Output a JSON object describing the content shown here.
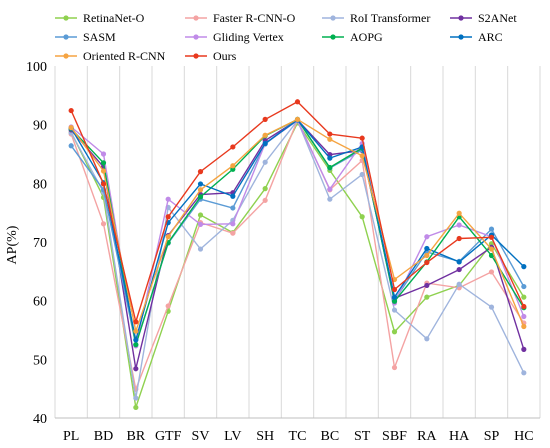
{
  "chart_data": {
    "type": "line",
    "title": "",
    "xlabel": "",
    "ylabel": "AP(%)",
    "ylim": [
      40,
      100
    ],
    "yticks": [
      40,
      50,
      60,
      70,
      80,
      90,
      100
    ],
    "grid": "vertical",
    "legend_position": "top",
    "categories": [
      "PL",
      "BD",
      "BR",
      "GTF",
      "SV",
      "LV",
      "SH",
      "TC",
      "BC",
      "ST",
      "SBF",
      "RA",
      "HA",
      "SP",
      "HC"
    ],
    "series": [
      {
        "name": "RetinaNet-O",
        "color": "#8fd14f",
        "values": [
          88.7,
          77.6,
          41.8,
          58.2,
          74.6,
          71.6,
          79.1,
          90.3,
          82.2,
          74.3,
          54.7,
          60.6,
          62.6,
          69.7,
          60.6
        ]
      },
      {
        "name": "Faster R-CNN-O",
        "color": "#f4a3a3",
        "values": [
          88.4,
          73.1,
          44.9,
          59.1,
          73.3,
          71.5,
          77.1,
          90.8,
          78.9,
          83.9,
          48.6,
          63.0,
          62.2,
          64.9,
          56.2
        ]
      },
      {
        "name": "RoI Transformer",
        "color": "#9fb4dd",
        "values": [
          88.6,
          78.5,
          43.4,
          75.9,
          68.8,
          73.7,
          83.6,
          90.7,
          77.3,
          81.5,
          58.4,
          53.5,
          62.8,
          58.9,
          47.7
        ]
      },
      {
        "name": "S2ANet",
        "color": "#7030a0",
        "values": [
          89.1,
          82.8,
          48.4,
          71.1,
          78.1,
          78.4,
          87.3,
          90.8,
          84.9,
          85.6,
          60.4,
          62.6,
          65.3,
          69.1,
          51.7
        ]
      },
      {
        "name": "SASM",
        "color": "#5b9bd5",
        "values": [
          86.4,
          78.9,
          52.5,
          69.8,
          77.3,
          75.8,
          86.7,
          90.9,
          82.6,
          85.7,
          60.1,
          68.3,
          66.7,
          72.2,
          62.4
        ]
      },
      {
        "name": "Gliding Vertex",
        "color": "#c08be8",
        "values": [
          89.6,
          85.0,
          52.3,
          77.3,
          73.0,
          73.1,
          86.8,
          90.7,
          79.0,
          86.8,
          59.6,
          70.9,
          72.9,
          70.9,
          57.3
        ]
      },
      {
        "name": "AOPG",
        "color": "#00b050",
        "values": [
          89.3,
          83.5,
          52.5,
          69.9,
          77.7,
          82.4,
          88.1,
          90.9,
          82.7,
          86.0,
          59.9,
          66.6,
          74.3,
          67.7,
          58.8
        ]
      },
      {
        "name": "ARC",
        "color": "#0070c0",
        "values": [
          89.4,
          80.1,
          53.3,
          73.3,
          79.9,
          77.8,
          86.8,
          90.8,
          84.3,
          86.2,
          60.6,
          68.9,
          66.6,
          71.2,
          65.8
        ]
      },
      {
        "name": "Oriented R-CNN",
        "color": "#f5a442",
        "values": [
          89.5,
          82.1,
          54.8,
          70.9,
          78.9,
          83.0,
          88.2,
          90.9,
          87.5,
          84.7,
          63.6,
          67.7,
          74.9,
          68.8,
          55.6
        ]
      },
      {
        "name": "Ours",
        "color": "#e8391e",
        "values": [
          92.4,
          79.9,
          56.4,
          74.3,
          82.0,
          86.2,
          90.9,
          93.9,
          88.4,
          87.7,
          61.9,
          66.5,
          70.6,
          70.8,
          59.0
        ]
      }
    ]
  }
}
